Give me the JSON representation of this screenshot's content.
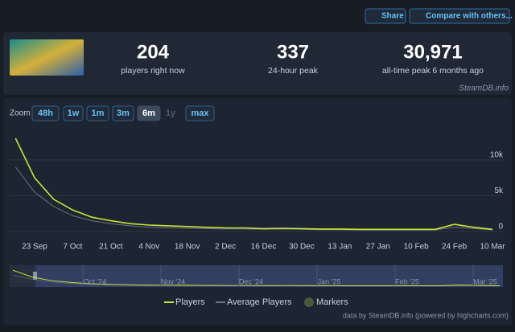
{
  "header": {
    "share": "Share",
    "compare": "Compare with others..."
  },
  "stats": [
    {
      "value": "204",
      "label": "players right now"
    },
    {
      "value": "337",
      "label": "24-hour peak"
    },
    {
      "value": "30,971",
      "label": "all-time peak 6 months ago"
    }
  ],
  "source": "SteamDB.info",
  "zoom": {
    "label": "Zoom",
    "buttons": [
      "48h",
      "1w",
      "1m",
      "3m",
      "6m",
      "1y",
      "max"
    ]
  },
  "chart_data": {
    "type": "line",
    "categories": [
      null,
      "23 Sep",
      null,
      "7 Oct",
      null,
      "21 Oct",
      null,
      "4 Nov",
      null,
      "18 Nov",
      null,
      "2 Dec",
      null,
      "16 Dec",
      null,
      "30 Dec",
      null,
      "13 Jan",
      null,
      "27 Jan",
      null,
      "10 Feb",
      null,
      "24 Feb",
      null,
      "10 Mar"
    ],
    "series": [
      {
        "name": "Players",
        "color": "#c7e636",
        "values": [
          13000,
          7500,
          4500,
          3000,
          2000,
          1500,
          1100,
          900,
          800,
          700,
          600,
          500,
          500,
          400,
          450,
          400,
          350,
          350,
          300,
          300,
          300,
          300,
          300,
          1000,
          600,
          300
        ]
      },
      {
        "name": "Average Players",
        "color": "#6b7280",
        "values": [
          9000,
          5500,
          3500,
          2200,
          1500,
          1100,
          800,
          600,
          500,
          450,
          400,
          350,
          350,
          300,
          320,
          300,
          250,
          250,
          220,
          220,
          220,
          220,
          220,
          600,
          400,
          220
        ]
      }
    ],
    "markers_label": "Markers",
    "ylim": [
      0,
      13800
    ],
    "yticks": [
      0,
      {
        "value": 5000,
        "label": "5k"
      },
      {
        "value": 10000,
        "label": "10k"
      }
    ],
    "grid": true,
    "navigator_labels": [
      "Oct '24",
      "Nov '24",
      "Dec '24",
      "Jan '25",
      "Feb '25",
      "Mar '25"
    ]
  },
  "credit": "data by SteamDB.info (powered by highcharts.com)"
}
